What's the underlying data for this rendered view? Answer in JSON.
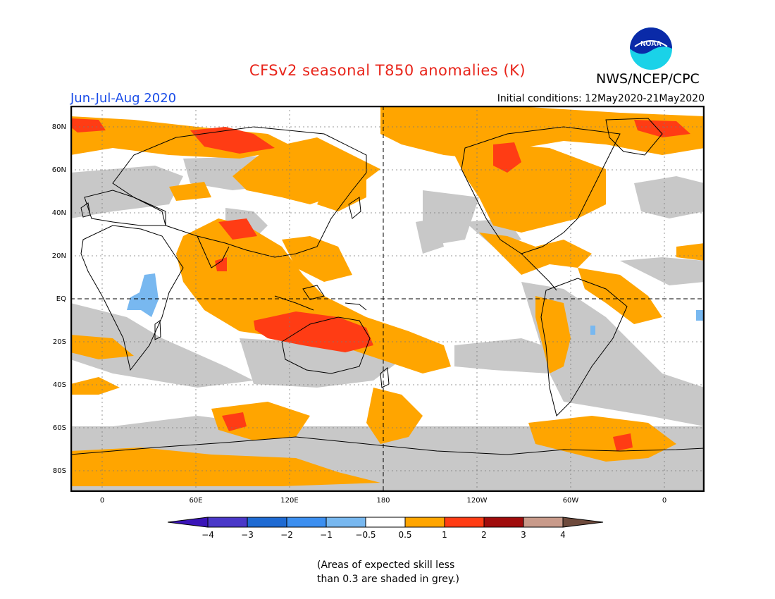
{
  "header": {
    "title": "CFSv2 seasonal T850 anomalies (K)",
    "agency": "NWS/NCEP/CPC",
    "season": "Jun-Jul-Aug 2020",
    "initial_conditions": "Initial conditions: 12May2020-21May2020",
    "logo_text": "NOAA"
  },
  "map": {
    "projection": "latitude-longitude",
    "lat_labels": [
      "80N",
      "60N",
      "40N",
      "20N",
      "EQ",
      "20S",
      "40S",
      "60S",
      "80S"
    ],
    "lon_labels": [
      "0",
      "60E",
      "120E",
      "180",
      "120W",
      "60W",
      "0"
    ],
    "grid": "dotted",
    "dashed_lines": [
      "Equator",
      "180"
    ],
    "skill_mask_color": "#c8c8c8"
  },
  "legend": {
    "labels": [
      "−4",
      "−3",
      "−2",
      "−1",
      "−0.5",
      "0.5",
      "1",
      "2",
      "3",
      "4"
    ],
    "colors": [
      "#3a14b8",
      "#4a38c8",
      "#1e6ad2",
      "#3c8ff0",
      "#78b8f0",
      "#ffffff",
      "#ffa500",
      "#ff3c14",
      "#a00c0c",
      "#c89a8a",
      "#6e4a3c"
    ],
    "units": "K"
  },
  "note": "(Areas of expected skill less\nthan 0.3 are shaded in grey.)"
}
